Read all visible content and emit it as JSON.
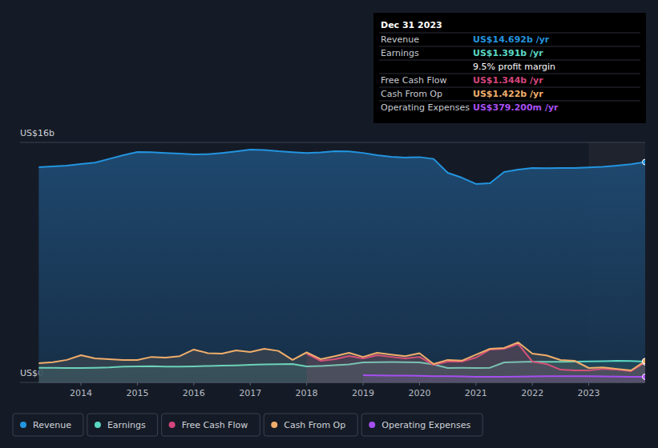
{
  "chart_data": {
    "type": "line",
    "x": [
      2013.25,
      2013.5,
      2013.75,
      2014,
      2014.25,
      2014.5,
      2014.75,
      2015,
      2015.25,
      2015.5,
      2015.75,
      2016,
      2016.25,
      2016.5,
      2016.75,
      2017,
      2017.25,
      2017.5,
      2017.75,
      2018,
      2018.25,
      2018.5,
      2018.75,
      2019,
      2019.25,
      2019.5,
      2019.75,
      2020,
      2020.25,
      2020.5,
      2020.75,
      2021,
      2021.25,
      2021.5,
      2021.75,
      2022,
      2022.25,
      2022.5,
      2022.75,
      2023,
      2023.25,
      2023.5,
      2023.75,
      2024
    ],
    "series": [
      {
        "name": "Revenue",
        "color": "#2394df",
        "values": [
          14.35,
          14.4,
          14.45,
          14.56,
          14.65,
          14.9,
          15.15,
          15.36,
          15.35,
          15.3,
          15.25,
          15.2,
          15.22,
          15.3,
          15.4,
          15.52,
          15.5,
          15.41,
          15.35,
          15.3,
          15.33,
          15.41,
          15.4,
          15.3,
          15.15,
          15.04,
          14.99,
          15.02,
          14.9,
          13.97,
          13.65,
          13.23,
          13.28,
          14.03,
          14.19,
          14.29,
          14.28,
          14.29,
          14.3,
          14.33,
          14.37,
          14.45,
          14.55,
          14.692
        ]
      },
      {
        "name": "Earnings",
        "color": "#5ad8c4",
        "values": [
          0.98,
          0.97,
          0.96,
          0.96,
          0.98,
          1.0,
          1.05,
          1.07,
          1.08,
          1.06,
          1.06,
          1.07,
          1.1,
          1.12,
          1.14,
          1.17,
          1.2,
          1.22,
          1.23,
          1.07,
          1.1,
          1.15,
          1.2,
          1.33,
          1.35,
          1.36,
          1.35,
          1.33,
          1.2,
          0.96,
          0.97,
          0.96,
          0.98,
          1.33,
          1.36,
          1.39,
          1.38,
          1.38,
          1.39,
          1.4,
          1.42,
          1.44,
          1.43,
          1.391
        ]
      },
      {
        "name": "Free Cash Flow",
        "color": "#d4457c",
        "values": [
          null,
          null,
          null,
          null,
          null,
          null,
          null,
          null,
          null,
          null,
          null,
          null,
          null,
          null,
          null,
          null,
          null,
          null,
          null,
          1.92,
          1.44,
          1.55,
          1.76,
          1.6,
          1.81,
          1.7,
          1.6,
          1.7,
          1.17,
          1.39,
          1.39,
          1.65,
          2.19,
          2.24,
          2.56,
          1.39,
          1.23,
          0.85,
          0.8,
          0.8,
          0.9,
          0.85,
          0.75,
          1.344
        ]
      },
      {
        "name": "Cash From Op",
        "color": "#f0ae6b",
        "values": [
          1.28,
          1.35,
          1.5,
          1.81,
          1.6,
          1.55,
          1.5,
          1.49,
          1.7,
          1.65,
          1.75,
          2.19,
          1.95,
          1.92,
          2.13,
          2.03,
          2.24,
          2.1,
          1.5,
          2.0,
          1.55,
          1.75,
          1.97,
          1.7,
          1.97,
          1.85,
          1.75,
          1.95,
          1.23,
          1.5,
          1.45,
          1.85,
          2.24,
          2.3,
          2.67,
          1.92,
          1.8,
          1.49,
          1.44,
          0.96,
          1.0,
          0.9,
          0.8,
          1.422
        ]
      },
      {
        "name": "Operating Expenses",
        "color": "#a64ff0",
        "values": [
          null,
          null,
          null,
          null,
          null,
          null,
          null,
          null,
          null,
          null,
          null,
          null,
          null,
          null,
          null,
          null,
          null,
          null,
          null,
          null,
          null,
          null,
          null,
          0.48,
          0.47,
          0.46,
          0.45,
          0.44,
          0.42,
          0.41,
          0.4,
          0.38,
          0.37,
          0.38,
          0.39,
          0.4,
          0.41,
          0.42,
          0.42,
          0.41,
          0.4,
          0.39,
          0.38,
          0.3792
        ]
      }
    ],
    "xlim": [
      2013.25,
      2024
    ],
    "xticks": [
      2014,
      2015,
      2016,
      2017,
      2018,
      2019,
      2020,
      2021,
      2022,
      2023
    ],
    "ylim": [
      0,
      16
    ],
    "yticks": [
      {
        "value": 0,
        "label": "US$0"
      },
      {
        "value": 16,
        "label": "US$16b"
      }
    ],
    "grid": true,
    "legend": "bottom-left",
    "annotations": {
      "title": "Dec 31 2023",
      "rows": [
        {
          "label": "Revenue",
          "value": "US$14.692b /yr"
        },
        {
          "label": "Earnings",
          "value": "US$1.391b /yr"
        },
        {
          "value": "9.5% profit margin"
        },
        {
          "label": "Free Cash Flow",
          "value": "US$1.344b /yr"
        },
        {
          "label": "Cash From Op",
          "value": "US$1.422b /yr"
        },
        {
          "label": "Operating Expenses",
          "value": "US$379.200m /yr"
        }
      ]
    }
  }
}
